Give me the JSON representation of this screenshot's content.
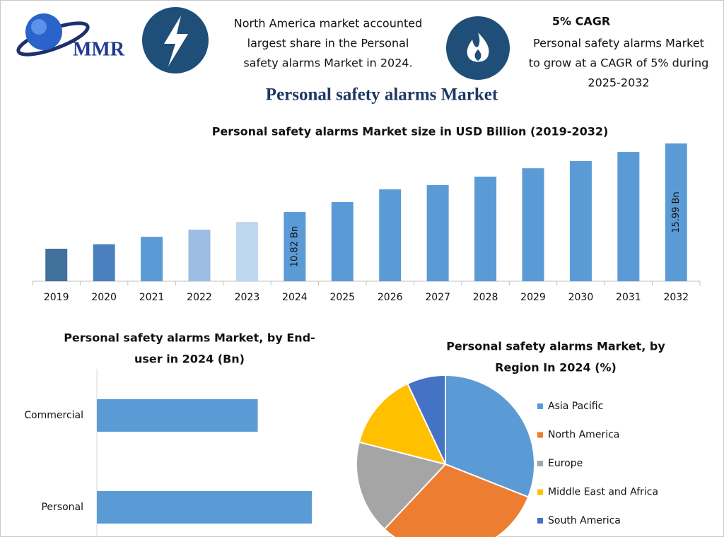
{
  "logo": "MMR",
  "highlights": [
    {
      "lines": [
        "North America market accounted",
        "largest share in the Personal",
        "safety alarms Market in 2024."
      ]
    },
    {
      "heading": "5% CAGR",
      "lines": [
        "Personal safety alarms Market",
        "to grow at a CAGR of 5% during",
        "2025-2032"
      ]
    }
  ],
  "title": "Personal safety alarms Market",
  "chart_data": [
    {
      "type": "bar",
      "title": [
        "Personal safety alarms Market size in USD Billion (2019-2032)"
      ],
      "categories": [
        "2019",
        "2020",
        "2021",
        "2022",
        "2023",
        "2024",
        "2025",
        "2026",
        "2027",
        "2028",
        "2029",
        "2030",
        "2031",
        "2032"
      ],
      "values": [
        8.05,
        8.39,
        8.95,
        9.49,
        10.07,
        10.82,
        11.57,
        12.53,
        12.85,
        13.49,
        14.12,
        14.66,
        15.35,
        15.99
      ],
      "value_labels": [
        null,
        null,
        null,
        null,
        null,
        "10.82 Bn",
        null,
        null,
        null,
        null,
        null,
        null,
        null,
        "15.99 Bn"
      ],
      "colors": [
        "#41719c",
        "#4a80bd",
        "#5b9bd5",
        "#9dbde4",
        "#bdd7ee",
        "#5b9bd5",
        "#5b9bd5",
        "#5b9bd5",
        "#5b9bd5",
        "#5b9bd5",
        "#5b9bd5",
        "#5b9bd5",
        "#5b9bd5",
        "#5b9bd5"
      ],
      "ylim": [
        5.6,
        16.5
      ]
    },
    {
      "type": "hbar",
      "title": [
        "Personal safety alarms Market, by End-",
        "user in 2024 (Bn)"
      ],
      "categories": [
        "Commercial",
        "Personal"
      ],
      "values": [
        4.63,
        6.19
      ],
      "color": "#5b9bd5",
      "xlim": [
        0,
        7
      ]
    },
    {
      "type": "pie",
      "title": [
        "Personal safety alarms Market, by",
        "Region In 2024 (%)"
      ],
      "categories": [
        "Asia Pacific",
        "North America",
        "Europe",
        "Middle East and Africa",
        "South America"
      ],
      "values": [
        31,
        31,
        17,
        14,
        7
      ],
      "colors": [
        "#5b9bd5",
        "#ed7d31",
        "#a5a5a5",
        "#ffc000",
        "#4472c4"
      ],
      "legend": "right"
    }
  ]
}
